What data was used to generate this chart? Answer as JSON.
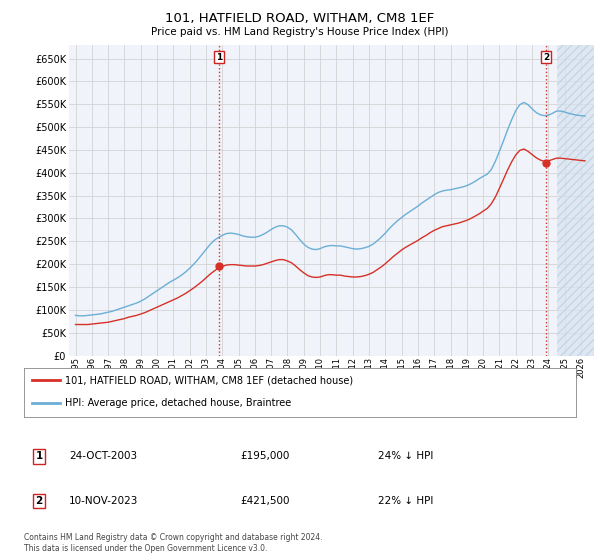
{
  "title": "101, HATFIELD ROAD, WITHAM, CM8 1EF",
  "subtitle": "Price paid vs. HM Land Registry's House Price Index (HPI)",
  "ylabel_ticks": [
    0,
    50000,
    100000,
    150000,
    200000,
    250000,
    300000,
    350000,
    400000,
    450000,
    500000,
    550000,
    600000,
    650000
  ],
  "ylim": [
    0,
    680000
  ],
  "xlim_start": 1994.6,
  "xlim_end": 2026.8,
  "x_ticks": [
    1995,
    1996,
    1997,
    1998,
    1999,
    2000,
    2001,
    2002,
    2003,
    2004,
    2005,
    2006,
    2007,
    2008,
    2009,
    2010,
    2011,
    2012,
    2013,
    2014,
    2015,
    2016,
    2017,
    2018,
    2019,
    2020,
    2021,
    2022,
    2023,
    2024,
    2025,
    2026
  ],
  "hpi_line_color": "#6baed6",
  "price_line_color": "#d73027",
  "vline_color": "#d73027",
  "grid_color": "#cccccc",
  "bg_color": "#ffffff",
  "plot_bg_color": "#f0f4fa",
  "hatch_color": "#d8e4f0",
  "transaction1_x": 2003.82,
  "transaction1_y": 195000,
  "transaction1_label": "1",
  "transaction1_date": "24-OCT-2003",
  "transaction1_price": "£195,000",
  "transaction1_note": "24% ↓ HPI",
  "transaction2_x": 2023.86,
  "transaction2_y": 421500,
  "transaction2_label": "2",
  "transaction2_date": "10-NOV-2023",
  "transaction2_price": "£421,500",
  "transaction2_note": "22% ↓ HPI",
  "legend_line1": "101, HATFIELD ROAD, WITHAM, CM8 1EF (detached house)",
  "legend_line2": "HPI: Average price, detached house, Braintree",
  "footnote": "Contains HM Land Registry data © Crown copyright and database right 2024.\nThis data is licensed under the Open Government Licence v3.0.",
  "hatch_start": 2024.5,
  "hpi_data_x": [
    1995.0,
    1995.25,
    1995.5,
    1995.75,
    1996.0,
    1996.25,
    1996.5,
    1996.75,
    1997.0,
    1997.25,
    1997.5,
    1997.75,
    1998.0,
    1998.25,
    1998.5,
    1998.75,
    1999.0,
    1999.25,
    1999.5,
    1999.75,
    2000.0,
    2000.25,
    2000.5,
    2000.75,
    2001.0,
    2001.25,
    2001.5,
    2001.75,
    2002.0,
    2002.25,
    2002.5,
    2002.75,
    2003.0,
    2003.25,
    2003.5,
    2003.75,
    2004.0,
    2004.25,
    2004.5,
    2004.75,
    2005.0,
    2005.25,
    2005.5,
    2005.75,
    2006.0,
    2006.25,
    2006.5,
    2006.75,
    2007.0,
    2007.25,
    2007.5,
    2007.75,
    2008.0,
    2008.25,
    2008.5,
    2008.75,
    2009.0,
    2009.25,
    2009.5,
    2009.75,
    2010.0,
    2010.25,
    2010.5,
    2010.75,
    2011.0,
    2011.25,
    2011.5,
    2011.75,
    2012.0,
    2012.25,
    2012.5,
    2012.75,
    2013.0,
    2013.25,
    2013.5,
    2013.75,
    2014.0,
    2014.25,
    2014.5,
    2014.75,
    2015.0,
    2015.25,
    2015.5,
    2015.75,
    2016.0,
    2016.25,
    2016.5,
    2016.75,
    2017.0,
    2017.25,
    2017.5,
    2017.75,
    2018.0,
    2018.25,
    2018.5,
    2018.75,
    2019.0,
    2019.25,
    2019.5,
    2019.75,
    2020.0,
    2020.25,
    2020.5,
    2020.75,
    2021.0,
    2021.25,
    2021.5,
    2021.75,
    2022.0,
    2022.25,
    2022.5,
    2022.75,
    2023.0,
    2023.25,
    2023.5,
    2023.75,
    2024.0,
    2024.25,
    2024.5,
    2024.75,
    2025.0,
    2025.25,
    2025.5,
    2025.75,
    2026.0,
    2026.25
  ],
  "hpi_data_y": [
    88000,
    87000,
    87000,
    88000,
    89000,
    90000,
    91000,
    93000,
    95000,
    97000,
    100000,
    103000,
    106000,
    109000,
    112000,
    115000,
    119000,
    124000,
    130000,
    136000,
    142000,
    148000,
    154000,
    160000,
    165000,
    170000,
    176000,
    183000,
    191000,
    200000,
    210000,
    221000,
    232000,
    243000,
    252000,
    258000,
    263000,
    267000,
    268000,
    267000,
    265000,
    262000,
    260000,
    259000,
    259000,
    261000,
    265000,
    270000,
    276000,
    281000,
    284000,
    284000,
    281000,
    275000,
    265000,
    254000,
    244000,
    237000,
    233000,
    232000,
    234000,
    238000,
    240000,
    241000,
    240000,
    240000,
    238000,
    236000,
    234000,
    233000,
    234000,
    236000,
    239000,
    244000,
    251000,
    259000,
    268000,
    278000,
    287000,
    295000,
    302000,
    309000,
    315000,
    321000,
    327000,
    334000,
    340000,
    346000,
    352000,
    357000,
    360000,
    362000,
    363000,
    365000,
    367000,
    369000,
    372000,
    376000,
    381000,
    387000,
    392000,
    397000,
    407000,
    425000,
    447000,
    470000,
    494000,
    516000,
    536000,
    549000,
    554000,
    549000,
    540000,
    532000,
    527000,
    525000,
    526000,
    530000,
    535000,
    535000,
    533000,
    530000,
    528000,
    526000,
    525000,
    524000
  ],
  "price_data_x": [
    1995.0,
    1995.25,
    1995.5,
    1995.75,
    1996.0,
    1996.25,
    1996.5,
    1996.75,
    1997.0,
    1997.25,
    1997.5,
    1997.75,
    1998.0,
    1998.25,
    1998.5,
    1998.75,
    1999.0,
    1999.25,
    1999.5,
    1999.75,
    2000.0,
    2000.25,
    2000.5,
    2000.75,
    2001.0,
    2001.25,
    2001.5,
    2001.75,
    2002.0,
    2002.25,
    2002.5,
    2002.75,
    2003.0,
    2003.25,
    2003.5,
    2003.75,
    2004.0,
    2004.25,
    2004.5,
    2004.75,
    2005.0,
    2005.25,
    2005.5,
    2005.75,
    2006.0,
    2006.25,
    2006.5,
    2006.75,
    2007.0,
    2007.25,
    2007.5,
    2007.75,
    2008.0,
    2008.25,
    2008.5,
    2008.75,
    2009.0,
    2009.25,
    2009.5,
    2009.75,
    2010.0,
    2010.25,
    2010.5,
    2010.75,
    2011.0,
    2011.25,
    2011.5,
    2011.75,
    2012.0,
    2012.25,
    2012.5,
    2012.75,
    2013.0,
    2013.25,
    2013.5,
    2013.75,
    2014.0,
    2014.25,
    2014.5,
    2014.75,
    2015.0,
    2015.25,
    2015.5,
    2015.75,
    2016.0,
    2016.25,
    2016.5,
    2016.75,
    2017.0,
    2017.25,
    2017.5,
    2017.75,
    2018.0,
    2018.25,
    2018.5,
    2018.75,
    2019.0,
    2019.25,
    2019.5,
    2019.75,
    2020.0,
    2020.25,
    2020.5,
    2020.75,
    2021.0,
    2021.25,
    2021.5,
    2021.75,
    2022.0,
    2022.25,
    2022.5,
    2022.75,
    2023.0,
    2023.25,
    2023.5,
    2023.75,
    2024.0,
    2024.25,
    2024.5,
    2024.75,
    2025.0,
    2025.25,
    2025.5,
    2025.75,
    2026.0,
    2026.25
  ],
  "price_data_y": [
    68000,
    68000,
    68000,
    68000,
    69000,
    70000,
    71000,
    72000,
    73000,
    75000,
    77000,
    79000,
    81000,
    84000,
    86000,
    88000,
    91000,
    94000,
    98000,
    102000,
    106000,
    110000,
    114000,
    118000,
    122000,
    126000,
    131000,
    136000,
    142000,
    148000,
    155000,
    162000,
    170000,
    178000,
    185000,
    191000,
    195000,
    198000,
    199000,
    199000,
    198000,
    197000,
    196000,
    196000,
    196000,
    197000,
    199000,
    202000,
    205000,
    208000,
    210000,
    210000,
    207000,
    203000,
    196000,
    188000,
    181000,
    175000,
    172000,
    171000,
    172000,
    175000,
    177000,
    177000,
    176000,
    176000,
    174000,
    173000,
    172000,
    172000,
    173000,
    175000,
    178000,
    182000,
    188000,
    194000,
    201000,
    209000,
    217000,
    224000,
    231000,
    237000,
    242000,
    247000,
    252000,
    258000,
    263000,
    269000,
    274000,
    278000,
    282000,
    284000,
    286000,
    288000,
    290000,
    293000,
    296000,
    300000,
    305000,
    310000,
    316000,
    322000,
    332000,
    347000,
    366000,
    386000,
    406000,
    424000,
    439000,
    449000,
    452000,
    447000,
    440000,
    433000,
    428000,
    425000,
    426000,
    429000,
    432000,
    432000,
    431000,
    430000,
    429000,
    428000,
    427000,
    426000
  ]
}
